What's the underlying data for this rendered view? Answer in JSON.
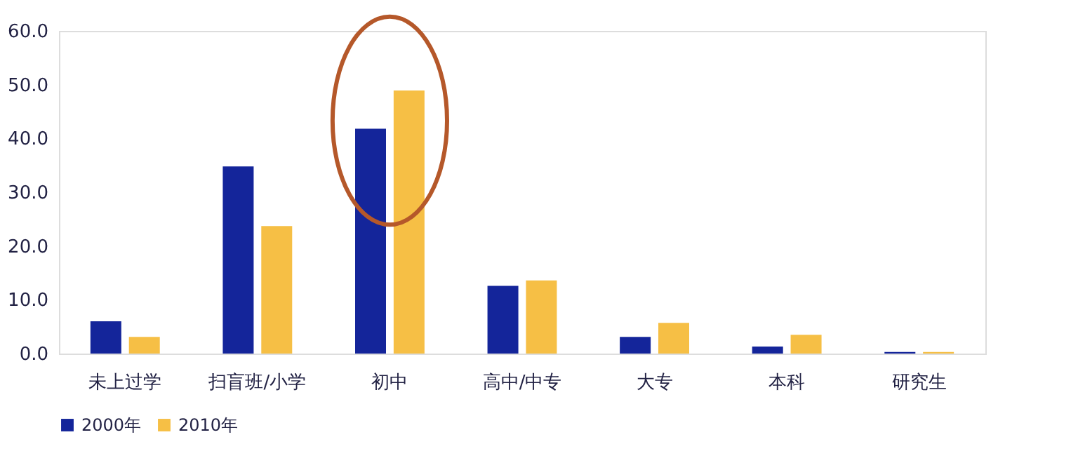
{
  "chart_data": {
    "type": "bar",
    "categories": [
      "未上过学",
      "扫盲班/小学",
      "初中",
      "高中/中专",
      "大专",
      "本科",
      "研究生"
    ],
    "series": [
      {
        "name": "2000年",
        "color": "#14259a",
        "values": [
          6.0,
          34.8,
          41.8,
          12.6,
          3.1,
          1.3,
          0.3
        ]
      },
      {
        "name": "2010年",
        "color": "#f6bf45",
        "values": [
          3.1,
          23.7,
          48.9,
          13.6,
          5.7,
          3.5,
          0.3
        ]
      }
    ],
    "ylim": [
      0,
      60
    ],
    "yticks": [
      {
        "value": 0,
        "label": "0.0"
      },
      {
        "value": 10,
        "label": "10.0"
      },
      {
        "value": 20,
        "label": "20.0"
      },
      {
        "value": 30,
        "label": "30.0"
      },
      {
        "value": 40,
        "label": "40.0"
      },
      {
        "value": 50,
        "label": "50.0"
      },
      {
        "value": 60,
        "label": "60.0"
      }
    ],
    "grid": false,
    "legend": "bottom"
  }
}
